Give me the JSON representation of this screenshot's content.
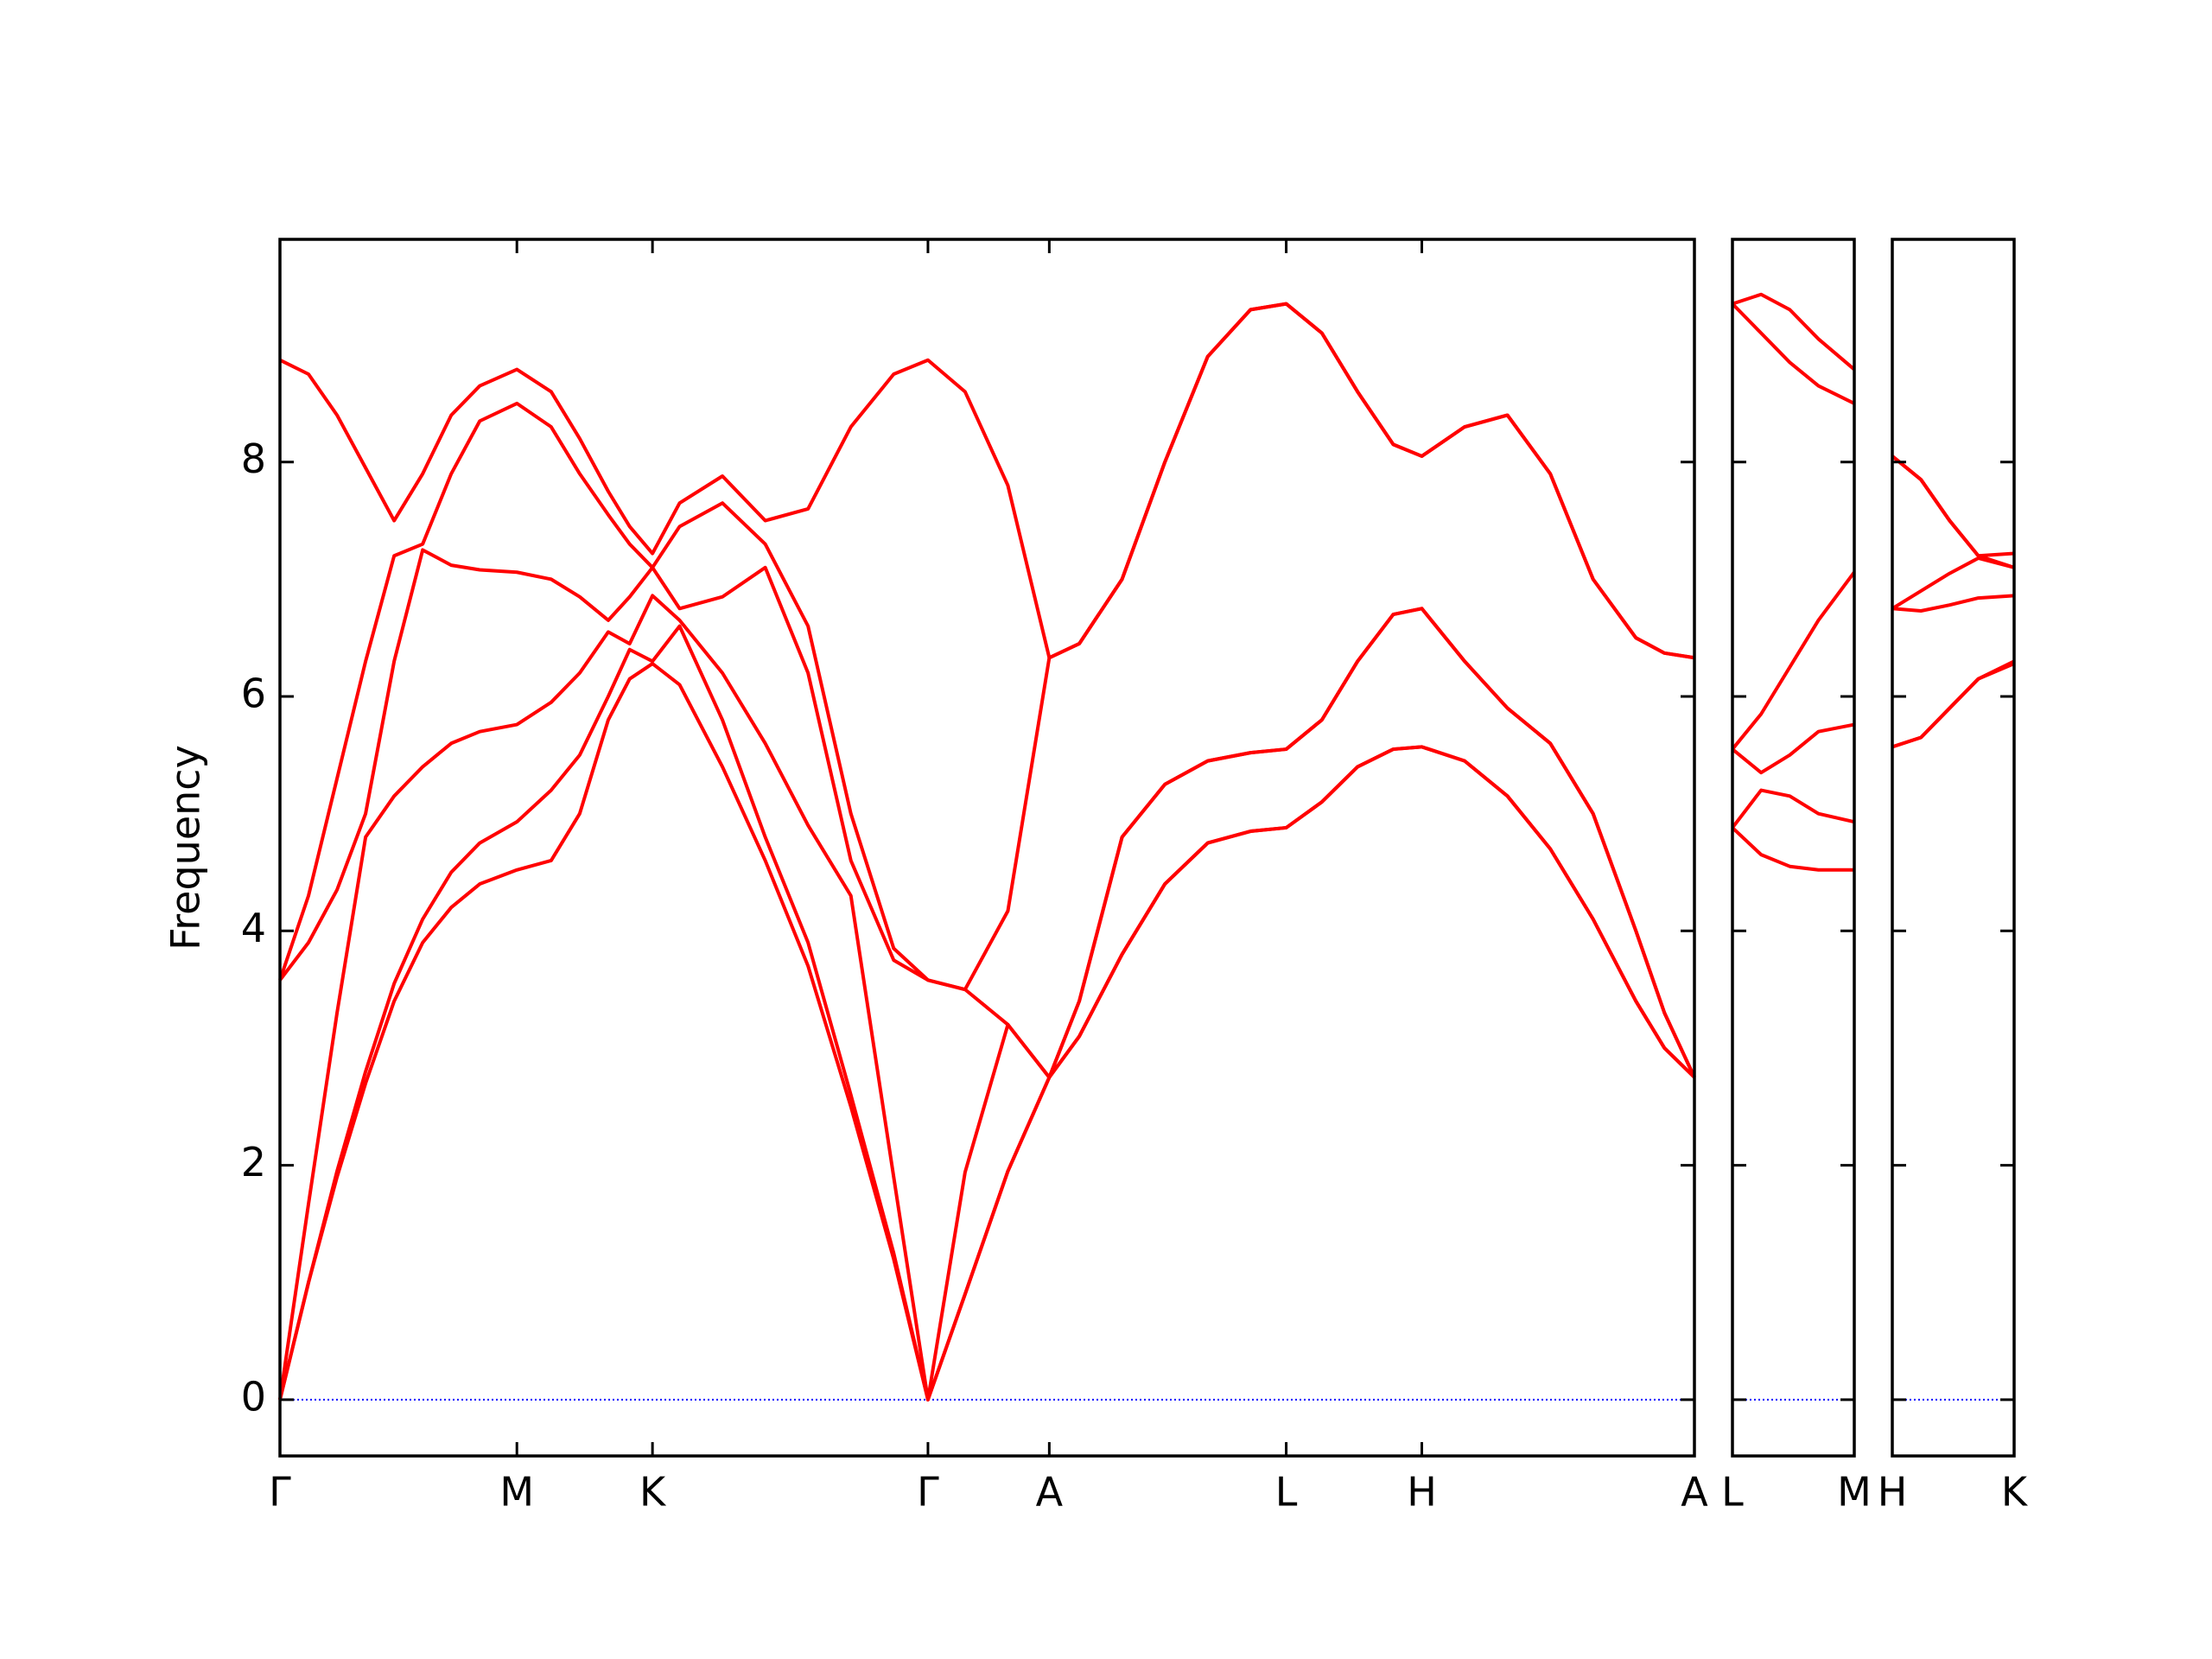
{
  "chart_data": [
    {
      "type": "line",
      "y_label": "Frequency",
      "x": [
        0,
        0.2,
        0.4,
        0.6,
        0.8,
        1.0,
        1.2,
        1.4,
        1.66,
        1.9,
        2.1,
        2.3,
        2.45,
        2.61,
        2.8,
        3.1,
        3.4,
        3.7,
        4.0,
        4.3,
        4.54,
        4.8,
        5.1,
        5.39,
        5.6,
        5.9,
        6.2,
        6.5,
        6.8,
        7.05,
        7.3,
        7.55,
        7.8,
        8.0,
        8.3,
        8.6,
        8.9,
        9.2,
        9.5,
        9.7,
        9.91
      ],
      "series": [
        {
          "color": "#ff0000",
          "values": [
            0,
            1.0,
            1.9,
            2.7,
            3.4,
            3.9,
            4.2,
            4.4,
            4.52,
            4.6,
            5.0,
            5.8,
            6.15,
            6.28,
            6.1,
            5.4,
            4.6,
            3.7,
            2.5,
            1.2,
            0,
            0.9,
            1.95,
            2.75,
            3.1,
            3.8,
            4.4,
            4.75,
            4.85,
            4.88,
            5.1,
            5.4,
            5.55,
            5.57,
            5.45,
            5.15,
            4.7,
            4.1,
            3.4,
            3.0,
            2.75
          ]
        },
        {
          "color": "#ff0000",
          "values": [
            0,
            1.0,
            1.95,
            2.8,
            3.55,
            4.1,
            4.5,
            4.75,
            4.93,
            5.2,
            5.5,
            6.0,
            6.4,
            6.3,
            6.6,
            5.8,
            4.8,
            3.9,
            2.6,
            1.25,
            0,
            0.9,
            1.95,
            2.75,
            3.1,
            3.8,
            4.4,
            4.75,
            4.85,
            4.88,
            5.1,
            5.4,
            5.55,
            5.57,
            5.45,
            5.15,
            4.7,
            4.1,
            3.4,
            3.0,
            2.75
          ]
        },
        {
          "color": "#ff0000",
          "values": [
            0,
            1.67,
            3.3,
            4.8,
            5.15,
            5.4,
            5.6,
            5.7,
            5.76,
            5.95,
            6.2,
            6.55,
            6.45,
            6.86,
            6.65,
            6.2,
            5.6,
            4.9,
            4.3,
            1.9,
            0,
            1.94,
            3.2,
            2.75,
            3.4,
            4.8,
            5.25,
            5.45,
            5.52,
            5.55,
            5.8,
            6.3,
            6.7,
            6.75,
            6.3,
            5.9,
            5.6,
            5.0,
            4.0,
            3.3,
            2.75
          ]
        },
        {
          "color": "#ff0000",
          "values": [
            3.58,
            3.9,
            4.35,
            5.0,
            6.3,
            7.25,
            7.12,
            7.08,
            7.06,
            7.0,
            6.85,
            6.65,
            6.85,
            7.1,
            6.75,
            6.85,
            7.1,
            6.2,
            4.6,
            3.75,
            3.58,
            3.5,
            3.2,
            2.75,
            3.4,
            4.8,
            5.25,
            5.45,
            5.52,
            5.55,
            5.8,
            6.3,
            6.7,
            6.75,
            6.3,
            5.9,
            5.6,
            5.0,
            4.0,
            3.3,
            2.75
          ]
        },
        {
          "color": "#ff0000",
          "values": [
            3.58,
            4.3,
            5.3,
            6.3,
            7.2,
            7.3,
            7.9,
            8.35,
            8.5,
            8.3,
            7.9,
            7.55,
            7.3,
            7.1,
            7.45,
            7.65,
            7.3,
            6.6,
            5.0,
            3.85,
            3.58,
            3.5,
            4.17,
            6.33,
            6.45,
            7.0,
            8.0,
            8.9,
            9.3,
            9.35,
            9.1,
            8.6,
            8.15,
            8.05,
            8.3,
            8.4,
            7.9,
            7.0,
            6.5,
            6.37,
            6.33
          ]
        },
        {
          "color": "#ff0000",
          "values": [
            8.87,
            8.75,
            8.4,
            7.95,
            7.5,
            7.9,
            8.4,
            8.65,
            8.79,
            8.6,
            8.2,
            7.75,
            7.45,
            7.22,
            7.65,
            7.88,
            7.5,
            7.6,
            8.3,
            8.75,
            8.87,
            8.6,
            7.8,
            6.33,
            6.45,
            7.0,
            8.0,
            8.9,
            9.3,
            9.35,
            9.1,
            8.6,
            8.15,
            8.05,
            8.3,
            8.4,
            7.9,
            7.0,
            6.5,
            6.37,
            6.33
          ]
        }
      ],
      "xlim": [
        0,
        9.91
      ],
      "xticks": [
        {
          "value": 0,
          "label": "Γ"
        },
        {
          "value": 1.66,
          "label": "M"
        },
        {
          "value": 2.61,
          "label": "K"
        },
        {
          "value": 4.54,
          "label": "Γ"
        },
        {
          "value": 5.39,
          "label": "A"
        },
        {
          "value": 7.05,
          "label": "L"
        },
        {
          "value": 8.0,
          "label": "H"
        },
        {
          "value": 9.91,
          "label": "A"
        }
      ],
      "ylim": [
        -0.48,
        9.9
      ],
      "yticks": [
        0,
        2,
        4,
        6,
        8
      ],
      "hline": {
        "y": 0,
        "color": "#0000ff"
      }
    },
    {
      "type": "line",
      "x": [
        0,
        0.2,
        0.4,
        0.6,
        0.85
      ],
      "series": [
        {
          "color": "#ff0000",
          "values": [
            4.88,
            4.65,
            4.55,
            4.52,
            4.52
          ]
        },
        {
          "color": "#ff0000",
          "values": [
            4.88,
            5.2,
            5.15,
            5.0,
            4.93
          ]
        },
        {
          "color": "#ff0000",
          "values": [
            5.55,
            5.35,
            5.5,
            5.7,
            5.76
          ]
        },
        {
          "color": "#ff0000",
          "values": [
            5.55,
            5.85,
            6.25,
            6.65,
            7.06
          ]
        },
        {
          "color": "#ff0000",
          "values": [
            9.35,
            9.1,
            8.85,
            8.65,
            8.5
          ]
        },
        {
          "color": "#ff0000",
          "values": [
            9.35,
            9.43,
            9.3,
            9.05,
            8.79
          ]
        }
      ],
      "xlim": [
        0,
        0.85
      ],
      "xticks": [
        {
          "value": 0,
          "label": "L"
        },
        {
          "value": 0.85,
          "label": "M"
        }
      ],
      "hline": {
        "y": 0,
        "color": "#0000ff"
      }
    },
    {
      "type": "line",
      "x": [
        0,
        0.2,
        0.4,
        0.6,
        0.85
      ],
      "series": [
        {
          "color": "#ff0000",
          "values": [
            5.57,
            5.65,
            5.9,
            6.15,
            6.28
          ]
        },
        {
          "color": "#ff0000",
          "values": [
            5.57,
            5.65,
            5.9,
            6.15,
            6.3
          ]
        },
        {
          "color": "#ff0000",
          "values": [
            6.75,
            6.73,
            6.78,
            6.84,
            6.86
          ]
        },
        {
          "color": "#ff0000",
          "values": [
            6.75,
            6.9,
            7.05,
            7.18,
            7.1
          ]
        },
        {
          "color": "#ff0000",
          "values": [
            8.05,
            7.85,
            7.5,
            7.2,
            7.1
          ]
        },
        {
          "color": "#ff0000",
          "values": [
            8.05,
            7.85,
            7.5,
            7.2,
            7.22
          ]
        }
      ],
      "xlim": [
        0,
        0.85
      ],
      "xticks": [
        {
          "value": 0,
          "label": "H"
        },
        {
          "value": 0.85,
          "label": "K"
        }
      ],
      "hline": {
        "y": 0,
        "color": "#0000ff"
      }
    }
  ]
}
